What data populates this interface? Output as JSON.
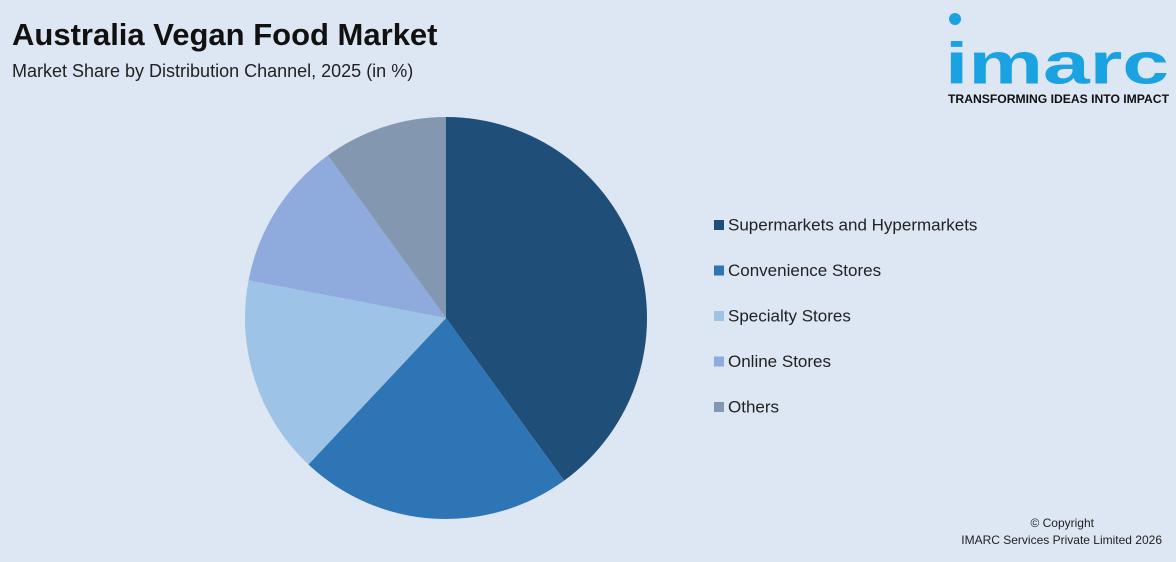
{
  "chart_data": {
    "type": "pie",
    "title": "Australia Vegan Food Market",
    "subtitle": "Market Share by Distribution Channel, 2025 (in %)",
    "categories": [
      "Supermarkets and Hypermarkets",
      "Convenience Stores",
      "Specialty Stores",
      "Online Stores",
      "Others"
    ],
    "values": [
      40,
      22,
      16,
      12,
      10
    ],
    "colors": [
      "#1f4e79",
      "#2e75b6",
      "#9dc3e6",
      "#8faadc",
      "#8497b0"
    ],
    "legend": "right"
  },
  "logo": {
    "name": "imarc",
    "tagline": "TRANSFORMING IDEAS INTO IMPACT"
  },
  "footer": {
    "line1": "© Copyright",
    "line2": "IMARC Services Private Limited 2026"
  }
}
